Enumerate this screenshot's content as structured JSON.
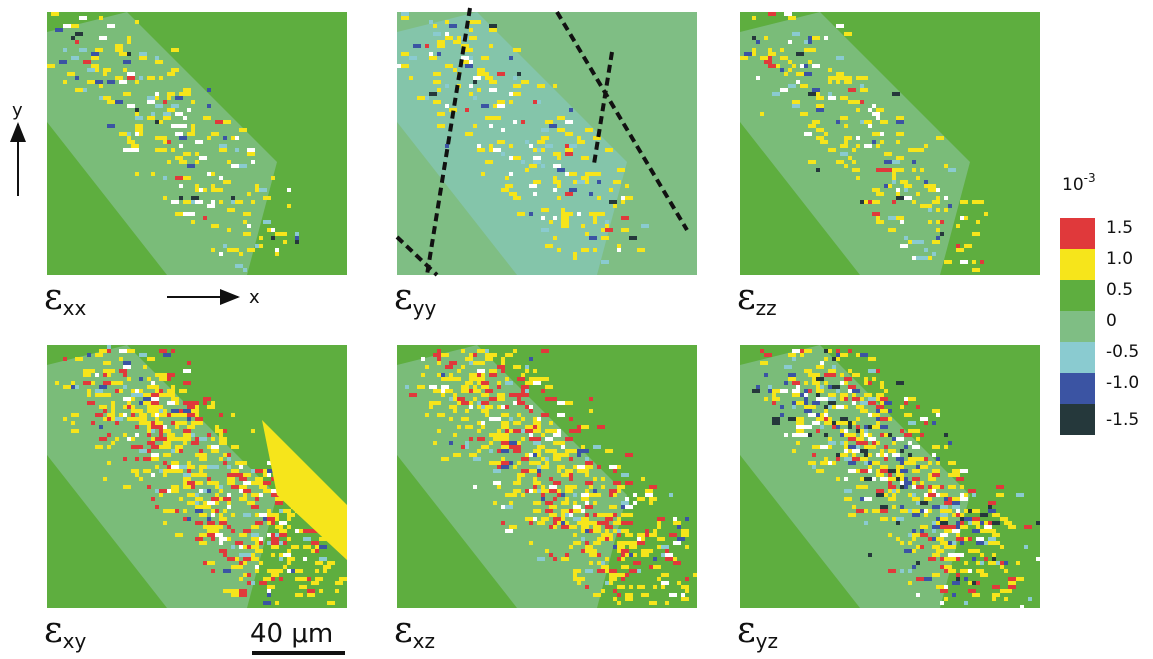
{
  "panels": [
    {
      "symbol": "ε",
      "subscript": "xx"
    },
    {
      "symbol": "ε",
      "subscript": "yy"
    },
    {
      "symbol": "ε",
      "subscript": "zz"
    },
    {
      "symbol": "ε",
      "subscript": "xy"
    },
    {
      "symbol": "ε",
      "subscript": "xz"
    },
    {
      "symbol": "ε",
      "subscript": "yz"
    }
  ],
  "axes": {
    "x": "x",
    "y": "y"
  },
  "scale_bar": "40 μm",
  "colorbar": {
    "base": "10",
    "exponent": "-3",
    "levels": [
      {
        "label": "1.5",
        "color": "#e0393b"
      },
      {
        "label": "1.0",
        "color": "#f6e51b"
      },
      {
        "label": "0.5",
        "color": "#5eae3f"
      },
      {
        "label": "0",
        "color": "#7fbe84"
      },
      {
        "label": "-0.5",
        "color": "#8acbd0"
      },
      {
        "label": "-1.0",
        "color": "#3b54a3"
      },
      {
        "label": "-1.5",
        "color": "#25383b"
      }
    ]
  }
}
